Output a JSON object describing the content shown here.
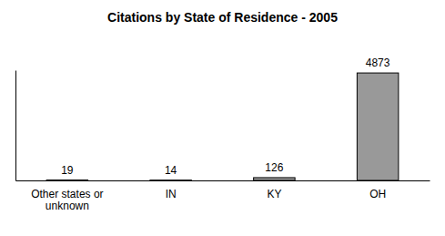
{
  "chart_data": {
    "type": "bar",
    "title": "Citations by State of Residence - 2005",
    "categories": [
      "Other states or unknown",
      "IN",
      "KY",
      "OH"
    ],
    "values": [
      19,
      14,
      126,
      4873
    ],
    "color": "#999999",
    "ylim": [
      0,
      5000
    ],
    "grid": false,
    "data_labels": true,
    "tick_labels": "x"
  }
}
